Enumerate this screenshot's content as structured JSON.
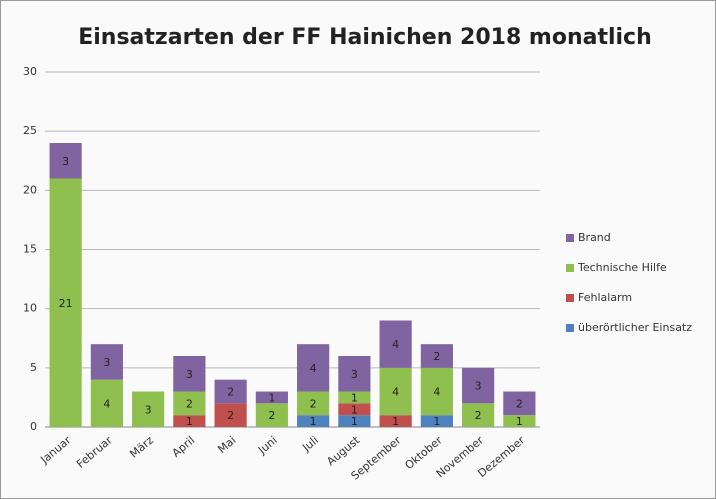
{
  "chart_data": {
    "type": "stacked_bar",
    "title": "Einsatzarten der FF Hainichen 2018 monatlich",
    "categories": [
      "Januar",
      "Februar",
      "März",
      "April",
      "Mai",
      "Juni",
      "Juli",
      "August",
      "September",
      "Oktober",
      "November",
      "Dezember"
    ],
    "series": [
      {
        "name": "überörtlicher Einsatz",
        "color": "#4f81bd",
        "values": [
          0,
          0,
          0,
          0,
          0,
          0,
          1,
          1,
          0,
          1,
          0,
          0
        ]
      },
      {
        "name": "Fehlalarm",
        "color": "#c0504d",
        "values": [
          0,
          0,
          0,
          1,
          2,
          0,
          0,
          1,
          1,
          0,
          0,
          0
        ]
      },
      {
        "name": "Technische Hilfe",
        "color": "#8fc04f",
        "values": [
          21,
          4,
          3,
          2,
          0,
          2,
          2,
          1,
          4,
          4,
          2,
          1
        ]
      },
      {
        "name": "Brand",
        "color": "#8064a2",
        "values": [
          3,
          3,
          0,
          3,
          2,
          1,
          4,
          3,
          4,
          2,
          3,
          2
        ]
      }
    ],
    "ylim": [
      0,
      30
    ],
    "yticks": [
      0,
      5,
      10,
      15,
      20,
      25,
      30
    ],
    "grid": true,
    "legend": "right"
  }
}
